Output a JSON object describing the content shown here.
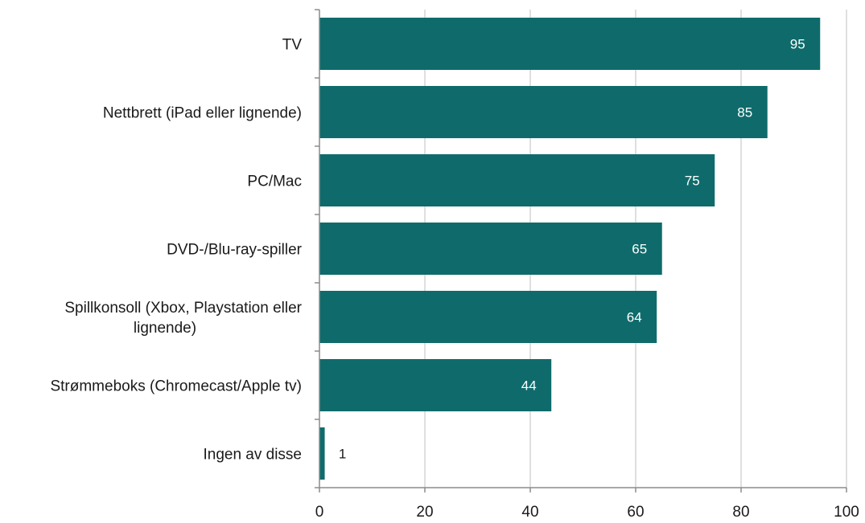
{
  "chart_data": {
    "type": "bar",
    "orientation": "horizontal",
    "categories": [
      "TV",
      "Nettbrett (iPad eller lignende)",
      "PC/Mac",
      "DVD-/Blu-ray-spiller",
      "Spillkonsoll (Xbox, Playstation eller lignende)",
      "Strømmeboks (Chromecast/Apple tv)",
      "Ingen av disse"
    ],
    "category_lines": [
      [
        "TV"
      ],
      [
        "Nettbrett (iPad eller lignende)"
      ],
      [
        "PC/Mac"
      ],
      [
        "DVD-/Blu-ray-spiller"
      ],
      [
        "Spillkonsoll (Xbox, Playstation eller",
        "lignende)"
      ],
      [
        "Strømmeboks (Chromecast/Apple tv)"
      ],
      [
        "Ingen av disse"
      ]
    ],
    "values": [
      95,
      85,
      75,
      65,
      64,
      44,
      1
    ],
    "data_labels": [
      "95",
      "85",
      "75",
      "65",
      "64",
      "44",
      "1"
    ],
    "xlim": [
      0,
      100
    ],
    "x_ticks": [
      0,
      20,
      40,
      60,
      80,
      100
    ],
    "title": "",
    "xlabel": "",
    "ylabel": "",
    "grid": true,
    "legend": "none",
    "colors": {
      "bar": "#0f6b6b",
      "label_inside": "#ffffff",
      "label_outside": "#1a1a1a"
    }
  }
}
